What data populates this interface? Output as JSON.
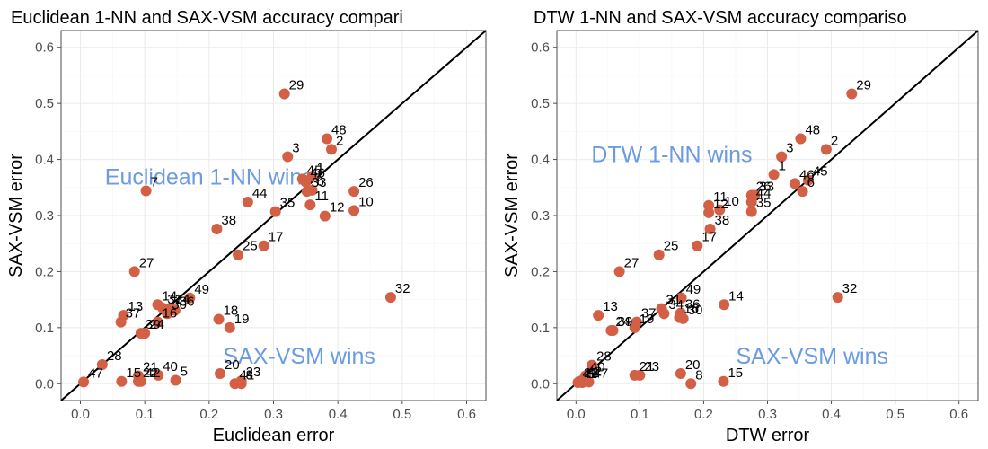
{
  "colors": {
    "point": "#d35f45",
    "annotation": "#6b9be0",
    "diagonal": "#000000"
  },
  "chart_data": [
    {
      "type": "scatter",
      "title": "Euclidean 1-NN and SAX-VSM accuracy compari",
      "xlabel": "Euclidean error",
      "ylabel": "SAX-VSM error",
      "xlim": [
        -0.03,
        0.63
      ],
      "ylim": [
        -0.03,
        0.63
      ],
      "xticks": [
        "0.0",
        "0.1",
        "0.2",
        "0.3",
        "0.4",
        "0.5",
        "0.6"
      ],
      "yticks": [
        "0.0",
        "0.1",
        "0.2",
        "0.3",
        "0.4",
        "0.5",
        "0.6"
      ],
      "tick_values": [
        0,
        0.1,
        0.2,
        0.3,
        0.4,
        0.5,
        0.6
      ],
      "grid": true,
      "diagonal": "y = x",
      "annotations": [
        {
          "text": "Euclidean 1-NN wins",
          "x": 0.2,
          "y": 0.37
        },
        {
          "text": "SAX-VSM wins",
          "x": 0.34,
          "y": 0.05
        }
      ],
      "points": [
        {
          "label": "29",
          "x": 0.317,
          "y": 0.517
        },
        {
          "label": "48",
          "x": 0.383,
          "y": 0.437
        },
        {
          "label": "2",
          "x": 0.39,
          "y": 0.418
        },
        {
          "label": "3",
          "x": 0.322,
          "y": 0.405
        },
        {
          "label": "1",
          "x": 0.36,
          "y": 0.37
        },
        {
          "label": "45",
          "x": 0.345,
          "y": 0.365
        },
        {
          "label": "46",
          "x": 0.35,
          "y": 0.36
        },
        {
          "label": "6",
          "x": 0.36,
          "y": 0.345
        },
        {
          "label": "33",
          "x": 0.352,
          "y": 0.343
        },
        {
          "label": "26",
          "x": 0.425,
          "y": 0.343
        },
        {
          "label": "7",
          "x": 0.102,
          "y": 0.344
        },
        {
          "label": "44",
          "x": 0.26,
          "y": 0.324
        },
        {
          "label": "11",
          "x": 0.357,
          "y": 0.319
        },
        {
          "label": "10",
          "x": 0.425,
          "y": 0.309
        },
        {
          "label": "35",
          "x": 0.303,
          "y": 0.307
        },
        {
          "label": "12",
          "x": 0.38,
          "y": 0.299
        },
        {
          "label": "38",
          "x": 0.212,
          "y": 0.276
        },
        {
          "label": "17",
          "x": 0.285,
          "y": 0.246
        },
        {
          "label": "25",
          "x": 0.245,
          "y": 0.23
        },
        {
          "label": "27",
          "x": 0.084,
          "y": 0.2
        },
        {
          "label": "32",
          "x": 0.482,
          "y": 0.154
        },
        {
          "label": "49",
          "x": 0.17,
          "y": 0.153
        },
        {
          "label": "14",
          "x": 0.12,
          "y": 0.141
        },
        {
          "label": "31",
          "x": 0.128,
          "y": 0.135
        },
        {
          "label": "34",
          "x": 0.14,
          "y": 0.135
        },
        {
          "label": "36",
          "x": 0.147,
          "y": 0.131
        },
        {
          "label": "13",
          "x": 0.067,
          "y": 0.122
        },
        {
          "label": "30",
          "x": 0.135,
          "y": 0.125
        },
        {
          "label": "18",
          "x": 0.215,
          "y": 0.115
        },
        {
          "label": "37",
          "x": 0.063,
          "y": 0.11
        },
        {
          "label": "16",
          "x": 0.12,
          "y": 0.11
        },
        {
          "label": "19",
          "x": 0.232,
          "y": 0.1
        },
        {
          "label": "24",
          "x": 0.1,
          "y": 0.09
        },
        {
          "label": "39",
          "x": 0.094,
          "y": 0.09
        },
        {
          "label": "28",
          "x": 0.034,
          "y": 0.034
        },
        {
          "label": "21",
          "x": 0.09,
          "y": 0.014
        },
        {
          "label": "40",
          "x": 0.121,
          "y": 0.015
        },
        {
          "label": "20",
          "x": 0.217,
          "y": 0.018
        },
        {
          "label": "23",
          "x": 0.25,
          "y": 0.005
        },
        {
          "label": "47",
          "x": 0.005,
          "y": 0.003
        },
        {
          "label": "15",
          "x": 0.064,
          "y": 0.004
        },
        {
          "label": "22",
          "x": 0.09,
          "y": 0.004
        },
        {
          "label": "42",
          "x": 0.094,
          "y": 0.004
        },
        {
          "label": "5",
          "x": 0.148,
          "y": 0.006
        },
        {
          "label": "41",
          "x": 0.24,
          "y": 0.0
        },
        {
          "label": "8",
          "x": 0.25,
          "y": 0.0
        }
      ]
    },
    {
      "type": "scatter",
      "title": "DTW 1-NN and SAX-VSM accuracy compariso",
      "xlabel": "DTW error",
      "ylabel": "SAX-VSM error",
      "xlim": [
        -0.03,
        0.63
      ],
      "ylim": [
        -0.03,
        0.63
      ],
      "xticks": [
        "0.0",
        "0.1",
        "0.2",
        "0.3",
        "0.4",
        "0.5",
        "0.6"
      ],
      "yticks": [
        "0.0",
        "0.1",
        "0.2",
        "0.3",
        "0.4",
        "0.5",
        "0.6"
      ],
      "tick_values": [
        0,
        0.1,
        0.2,
        0.3,
        0.4,
        0.5,
        0.6
      ],
      "grid": true,
      "diagonal": "y = x",
      "annotations": [
        {
          "text": "DTW 1-NN wins",
          "x": 0.15,
          "y": 0.41
        },
        {
          "text": "SAX-VSM wins",
          "x": 0.37,
          "y": 0.05
        }
      ],
      "points": [
        {
          "label": "29",
          "x": 0.432,
          "y": 0.517
        },
        {
          "label": "48",
          "x": 0.352,
          "y": 0.437
        },
        {
          "label": "2",
          "x": 0.392,
          "y": 0.418
        },
        {
          "label": "3",
          "x": 0.322,
          "y": 0.405
        },
        {
          "label": "1",
          "x": 0.31,
          "y": 0.373
        },
        {
          "label": "45",
          "x": 0.364,
          "y": 0.363
        },
        {
          "label": "46",
          "x": 0.343,
          "y": 0.357
        },
        {
          "label": "6",
          "x": 0.355,
          "y": 0.343
        },
        {
          "label": "26",
          "x": 0.275,
          "y": 0.336
        },
        {
          "label": "33",
          "x": 0.28,
          "y": 0.336
        },
        {
          "label": "44",
          "x": 0.275,
          "y": 0.324
        },
        {
          "label": "11",
          "x": 0.208,
          "y": 0.318
        },
        {
          "label": "12",
          "x": 0.208,
          "y": 0.305
        },
        {
          "label": "10",
          "x": 0.225,
          "y": 0.31
        },
        {
          "label": "35",
          "x": 0.275,
          "y": 0.307
        },
        {
          "label": "38",
          "x": 0.21,
          "y": 0.276
        },
        {
          "label": "17",
          "x": 0.19,
          "y": 0.246
        },
        {
          "label": "25",
          "x": 0.13,
          "y": 0.23
        },
        {
          "label": "27",
          "x": 0.068,
          "y": 0.2
        },
        {
          "label": "32",
          "x": 0.41,
          "y": 0.154
        },
        {
          "label": "49",
          "x": 0.165,
          "y": 0.153
        },
        {
          "label": "14",
          "x": 0.232,
          "y": 0.141
        },
        {
          "label": "31",
          "x": 0.134,
          "y": 0.134
        },
        {
          "label": "34",
          "x": 0.138,
          "y": 0.125
        },
        {
          "label": "36",
          "x": 0.164,
          "y": 0.126
        },
        {
          "label": "16",
          "x": 0.162,
          "y": 0.118
        },
        {
          "label": "30",
          "x": 0.168,
          "y": 0.116
        },
        {
          "label": "13",
          "x": 0.035,
          "y": 0.122
        },
        {
          "label": "37",
          "x": 0.095,
          "y": 0.11
        },
        {
          "label": "19",
          "x": 0.092,
          "y": 0.1
        },
        {
          "label": "24",
          "x": 0.055,
          "y": 0.095
        },
        {
          "label": "39",
          "x": 0.058,
          "y": 0.095
        },
        {
          "label": "28",
          "x": 0.025,
          "y": 0.033
        },
        {
          "label": "21",
          "x": 0.092,
          "y": 0.015
        },
        {
          "label": "23",
          "x": 0.1,
          "y": 0.015
        },
        {
          "label": "20",
          "x": 0.164,
          "y": 0.018
        },
        {
          "label": "15",
          "x": 0.231,
          "y": 0.004
        },
        {
          "label": "8",
          "x": 0.18,
          "y": 0.0
        },
        {
          "label": "40",
          "x": 0.015,
          "y": 0.014
        },
        {
          "label": "42",
          "x": 0.01,
          "y": 0.006
        },
        {
          "label": "22",
          "x": 0.005,
          "y": 0.004
        },
        {
          "label": "47",
          "x": 0.02,
          "y": 0.003
        },
        {
          "label": "41",
          "x": 0.003,
          "y": 0.002
        },
        {
          "label": "5",
          "x": 0.01,
          "y": 0.002
        }
      ]
    }
  ]
}
